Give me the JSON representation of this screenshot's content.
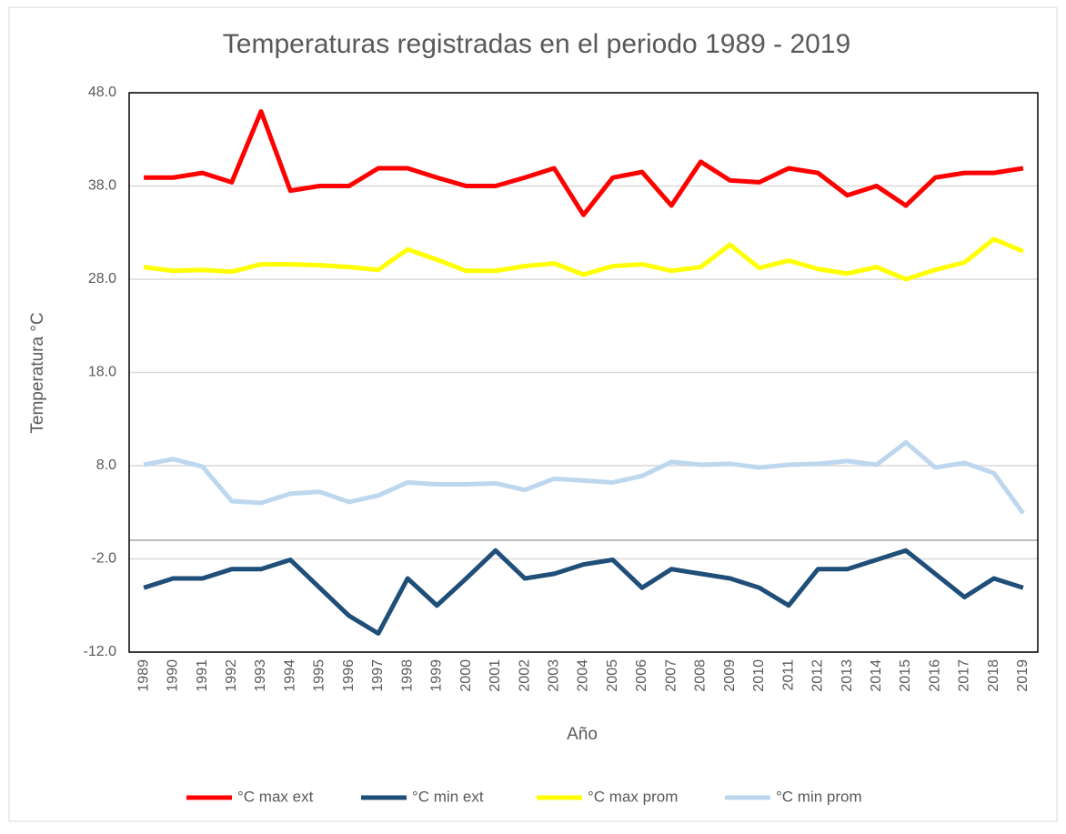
{
  "chart_data": {
    "type": "line",
    "title": "Temperaturas registradas en el periodo 1989 - 2019",
    "x_label": "Año",
    "y_label": "Temperatura °C",
    "categories": [
      "1989",
      "1990",
      "1991",
      "1992",
      "1993",
      "1994",
      "1995",
      "1996",
      "1997",
      "1998",
      "1999",
      "2000",
      "2001",
      "2002",
      "2003",
      "2004",
      "2005",
      "2006",
      "2007",
      "2008",
      "2009",
      "2010",
      "2011",
      "2012",
      "2013",
      "2014",
      "2015",
      "2016",
      "2017",
      "2018",
      "2019"
    ],
    "series": [
      {
        "name": "°C max ext",
        "color": "#ff0000",
        "values": [
          38.9,
          38.9,
          39.4,
          38.4,
          46.0,
          37.5,
          38.0,
          38.0,
          39.9,
          39.9,
          38.9,
          38.0,
          38.0,
          38.9,
          39.9,
          34.9,
          38.9,
          39.5,
          35.9,
          40.6,
          38.6,
          38.4,
          39.9,
          39.4,
          37.0,
          38.0,
          35.9,
          38.9,
          39.4,
          39.4,
          39.9
        ]
      },
      {
        "name": "°C min ext",
        "color": "#1f4e79",
        "values": [
          -5.1,
          -4.1,
          -4.1,
          -3.1,
          -3.1,
          -2.1,
          -5.1,
          -8.1,
          -10.0,
          -4.1,
          -7.0,
          -4.1,
          -1.1,
          -4.1,
          -3.6,
          -2.6,
          -2.1,
          -5.1,
          -3.1,
          -3.6,
          -4.1,
          -5.1,
          -7.0,
          -3.1,
          -3.1,
          -2.1,
          -1.1,
          -3.6,
          -6.1,
          -4.1,
          -5.1
        ]
      },
      {
        "name": "°C max prom",
        "color": "#ffff00",
        "values": [
          29.3,
          28.9,
          29.0,
          28.8,
          29.6,
          29.6,
          29.5,
          29.3,
          29.0,
          31.2,
          30.1,
          28.9,
          28.9,
          29.4,
          29.7,
          28.5,
          29.4,
          29.6,
          28.9,
          29.3,
          31.7,
          29.2,
          30.0,
          29.1,
          28.6,
          29.3,
          28.0,
          29.0,
          29.8,
          32.3,
          31.0
        ]
      },
      {
        "name": "°C min prom",
        "color": "#bdd7ee",
        "values": [
          8.1,
          8.7,
          7.9,
          4.2,
          4.0,
          5.0,
          5.2,
          4.1,
          4.8,
          6.2,
          6.0,
          6.0,
          6.1,
          5.4,
          6.6,
          6.4,
          6.2,
          6.9,
          8.4,
          8.1,
          8.2,
          7.8,
          8.1,
          8.2,
          8.5,
          8.1,
          10.5,
          7.8,
          8.3,
          7.2,
          2.9
        ]
      }
    ],
    "ylim": [
      -12,
      48
    ],
    "yticks": [
      {
        "value": -12,
        "label": "-12.0"
      },
      {
        "value": -2,
        "label": "-2.0"
      },
      {
        "value": 8,
        "label": "8.0"
      },
      {
        "value": 18,
        "label": "18.0"
      },
      {
        "value": 28,
        "label": "28.0"
      },
      {
        "value": 38,
        "label": "38.0"
      },
      {
        "value": 48,
        "label": "48.0"
      }
    ],
    "grid": true,
    "legend": "bottom"
  }
}
